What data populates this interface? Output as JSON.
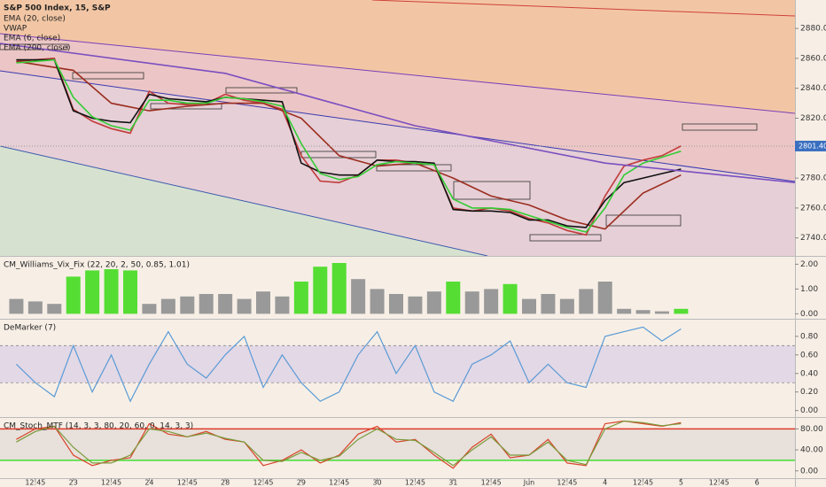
{
  "chart_data": [
    {
      "type": "line",
      "title": "S&P 500 Index, 15, S&P",
      "xlim": [
        -0.93,
        20.0
      ],
      "ylim": [
        2728,
        2899
      ],
      "yticks": [
        {
          "value": 2740,
          "label": "2740.00"
        },
        {
          "value": 2760,
          "label": "2760.00"
        },
        {
          "value": 2780,
          "label": "2780.00"
        },
        {
          "value": 2800,
          "label": "2800.00"
        },
        {
          "value": 2820,
          "label": "2820.00"
        },
        {
          "value": 2840,
          "label": "2840.00"
        },
        {
          "value": 2860,
          "label": "2860.00"
        },
        {
          "value": 2880,
          "label": "2880.00"
        }
      ],
      "last_price": {
        "value": 2801.4,
        "label": "2801.40"
      },
      "series": [
        {
          "name": "S&P 500 Index, 15, S&P",
          "color": "#c23b3b",
          "x": [
            -0.5,
            0,
            0.5,
            1,
            1.5,
            2,
            2.5,
            3,
            3.5,
            4,
            4.5,
            5,
            5.5,
            6,
            6.5,
            7,
            7.5,
            8,
            8.5,
            9,
            9.5,
            10,
            10.5,
            11,
            11.5,
            12,
            12.5,
            13,
            13.5,
            14,
            14.5,
            15,
            15.5,
            16,
            16.5,
            17
          ],
          "values": [
            2858,
            2859,
            2860,
            2826,
            2818,
            2813,
            2810,
            2838,
            2830,
            2829,
            2830,
            2836,
            2832,
            2830,
            2826,
            2795,
            2778,
            2777,
            2782,
            2792,
            2792,
            2790,
            2789,
            2760,
            2758,
            2760,
            2758,
            2753,
            2750,
            2745,
            2742,
            2768,
            2788,
            2792,
            2795,
            2801.4
          ]
        },
        {
          "name": "EMA (20, close)",
          "color": "#9b2d1f",
          "x": [
            -0.5,
            1,
            2,
            3,
            4,
            5,
            6,
            7,
            8,
            9,
            10,
            11,
            12,
            13,
            14,
            15,
            16,
            17
          ],
          "values": [
            2858,
            2852,
            2830,
            2825,
            2828,
            2830,
            2830,
            2820,
            2795,
            2788,
            2790,
            2780,
            2768,
            2762,
            2752,
            2746,
            2770,
            2782
          ]
        },
        {
          "name": "VWAP",
          "color": "#111111",
          "x": [
            -0.5,
            0,
            0.5,
            1,
            1.5,
            2,
            2.5,
            3,
            3.5,
            4,
            4.5,
            5,
            5.5,
            6,
            6.5,
            7,
            7.5,
            8,
            8.5,
            9,
            9.5,
            10,
            10.5,
            11,
            11.5,
            12,
            12.5,
            13,
            13.5,
            14,
            14.5,
            15,
            15.5,
            16,
            16.5,
            17
          ],
          "values": [
            2859,
            2859,
            2859,
            2825,
            2820,
            2818,
            2817,
            2836,
            2833,
            2832,
            2831,
            2834,
            2833,
            2832,
            2831,
            2790,
            2784,
            2782,
            2782,
            2792,
            2791,
            2791,
            2790,
            2759,
            2758,
            2758,
            2757,
            2752,
            2752,
            2748,
            2747,
            2765,
            2777,
            2780,
            2783,
            2786
          ]
        },
        {
          "name": "EMA (6, close)",
          "color": "#33cc33",
          "x": [
            -0.5,
            0,
            0.5,
            1,
            1.5,
            2,
            2.5,
            3,
            3.5,
            4,
            4.5,
            5,
            5.5,
            6,
            6.5,
            7,
            7.5,
            8,
            8.5,
            9,
            9.5,
            10,
            10.5,
            11,
            11.5,
            12,
            12.5,
            13,
            13.5,
            14,
            14.5,
            15,
            15.5,
            16,
            16.5,
            17
          ],
          "values": [
            2857,
            2858,
            2859,
            2834,
            2821,
            2815,
            2812,
            2832,
            2832,
            2830,
            2830,
            2834,
            2833,
            2831,
            2828,
            2803,
            2783,
            2779,
            2781,
            2789,
            2791,
            2790,
            2789,
            2766,
            2760,
            2760,
            2759,
            2755,
            2751,
            2747,
            2744,
            2760,
            2782,
            2790,
            2794,
            2798
          ]
        },
        {
          "name": "EMA (200, close)",
          "color": "#7b4fc0",
          "x": [
            -0.93,
            5,
            10,
            15,
            20
          ],
          "values": [
            2870,
            2850,
            2815,
            2790,
            2777
          ]
        }
      ]
    },
    {
      "type": "bar",
      "title": "CM_Williams_Vix_Fix (22, 20, 2, 50, 0.85, 1.01)",
      "xlim": [
        -0.93,
        20.0
      ],
      "ylim": [
        -0.2,
        2.3
      ],
      "yticks": [
        {
          "value": 0,
          "label": "0.00"
        },
        {
          "value": 1,
          "label": "1.00"
        },
        {
          "value": 2,
          "label": "2.00"
        }
      ],
      "x": [
        -0.5,
        0,
        0.5,
        1,
        1.5,
        2,
        2.5,
        3,
        3.5,
        4,
        4.5,
        5,
        5.5,
        6,
        6.5,
        7,
        7.5,
        8,
        8.5,
        9,
        9.5,
        10,
        10.5,
        11,
        11.5,
        12,
        12.5,
        13,
        13.5,
        14,
        14.5,
        15,
        15.5,
        16,
        16.5,
        17
      ],
      "values": [
        0.6,
        0.5,
        0.4,
        1.5,
        1.75,
        1.8,
        1.75,
        0.4,
        0.6,
        0.7,
        0.8,
        0.8,
        0.6,
        0.9,
        0.7,
        1.3,
        1.9,
        2.05,
        1.4,
        1.0,
        0.8,
        0.7,
        0.9,
        1.3,
        0.9,
        1.0,
        1.2,
        0.6,
        0.8,
        0.6,
        1.0,
        1.3,
        0.2,
        0.15,
        0.1,
        0.2
      ],
      "colors": [
        "#999999",
        "#999999",
        "#999999",
        "#55dd33",
        "#55dd33",
        "#55dd33",
        "#55dd33",
        "#999999",
        "#999999",
        "#999999",
        "#999999",
        "#999999",
        "#999999",
        "#999999",
        "#999999",
        "#55dd33",
        "#55dd33",
        "#55dd33",
        "#999999",
        "#999999",
        "#999999",
        "#999999",
        "#999999",
        "#55dd33",
        "#999999",
        "#999999",
        "#55dd33",
        "#999999",
        "#999999",
        "#999999",
        "#999999",
        "#999999",
        "#999999",
        "#999999",
        "#999999",
        "#55dd33"
      ]
    },
    {
      "type": "line",
      "title": "DeMarker (7)",
      "xlim": [
        -0.93,
        20.0
      ],
      "ylim": [
        -0.07,
        0.98
      ],
      "yticks": [
        {
          "value": 0,
          "label": "0.00"
        },
        {
          "value": 0.2,
          "label": "0.20"
        },
        {
          "value": 0.4,
          "label": "0.40"
        },
        {
          "value": 0.6,
          "label": "0.60"
        },
        {
          "value": 0.8,
          "label": "0.80"
        }
      ],
      "band": [
        0.3,
        0.7
      ],
      "series": [
        {
          "name": "DeMarker (7)",
          "color": "#5b9bd5",
          "x": [
            -0.5,
            0,
            0.5,
            1,
            1.5,
            2,
            2.5,
            3,
            3.5,
            4,
            4.5,
            5,
            5.5,
            6,
            6.5,
            7,
            7.5,
            8,
            8.5,
            9,
            9.5,
            10,
            10.5,
            11,
            11.5,
            12,
            12.5,
            13,
            13.5,
            14,
            14.5,
            15,
            15.5,
            16,
            16.5,
            17
          ],
          "values": [
            0.5,
            0.3,
            0.15,
            0.7,
            0.2,
            0.6,
            0.1,
            0.5,
            0.85,
            0.5,
            0.35,
            0.6,
            0.8,
            0.25,
            0.6,
            0.3,
            0.1,
            0.2,
            0.6,
            0.85,
            0.4,
            0.7,
            0.2,
            0.1,
            0.5,
            0.6,
            0.75,
            0.3,
            0.5,
            0.3,
            0.25,
            0.8,
            0.85,
            0.9,
            0.75,
            0.88
          ]
        }
      ]
    },
    {
      "type": "line",
      "title": "CM_Stoch_MTF (14, 3, 3, 80, 20, 60, 0, 14, 3, 3)",
      "xlim": [
        -0.93,
        20.0
      ],
      "ylim": [
        -13.9,
        100.9
      ],
      "yticks": [
        {
          "value": 0,
          "label": "0.00"
        },
        {
          "value": 40,
          "label": "40.00"
        },
        {
          "value": 80,
          "label": "80.00"
        }
      ],
      "band": [
        20,
        80
      ],
      "xticks": [
        {
          "value": 0,
          "label": "12:45"
        },
        {
          "value": 1,
          "label": "23"
        },
        {
          "value": 2,
          "label": "12:45"
        },
        {
          "value": 3,
          "label": "24"
        },
        {
          "value": 4,
          "label": "12:45"
        },
        {
          "value": 5,
          "label": "28"
        },
        {
          "value": 6,
          "label": "12:45"
        },
        {
          "value": 7,
          "label": "29"
        },
        {
          "value": 8,
          "label": "12:45"
        },
        {
          "value": 9,
          "label": "30"
        },
        {
          "value": 10,
          "label": "12:45"
        },
        {
          "value": 11,
          "label": "31"
        },
        {
          "value": 12,
          "label": "12:45"
        },
        {
          "value": 13,
          "label": "Jun"
        },
        {
          "value": 14,
          "label": "12:45"
        },
        {
          "value": 15,
          "label": "4"
        },
        {
          "value": 16,
          "label": "12:45"
        },
        {
          "value": 17,
          "label": "5"
        },
        {
          "value": 18,
          "label": "12:45"
        },
        {
          "value": 19,
          "label": "6"
        }
      ],
      "series": [
        {
          "name": "K",
          "color": "#d9442b",
          "x": [
            -0.5,
            0,
            0.5,
            1,
            1.5,
            2,
            2.5,
            3,
            3.5,
            4,
            4.5,
            5,
            5.5,
            6,
            6.5,
            7,
            7.5,
            8,
            8.5,
            9,
            9.5,
            10,
            10.5,
            11,
            11.5,
            12,
            12.5,
            13,
            13.5,
            14,
            14.5,
            15,
            15.5,
            16,
            16.5,
            17
          ],
          "values": [
            60,
            80,
            85,
            30,
            10,
            20,
            25,
            90,
            70,
            65,
            75,
            60,
            55,
            10,
            20,
            40,
            15,
            30,
            70,
            85,
            55,
            60,
            30,
            5,
            45,
            70,
            25,
            30,
            60,
            15,
            10,
            90,
            95,
            90,
            85,
            92
          ]
        },
        {
          "name": "D",
          "color": "#7a9a3a",
          "x": [
            -0.5,
            0,
            0.5,
            1,
            1.5,
            2,
            2.5,
            3,
            3.5,
            4,
            4.5,
            5,
            5.5,
            6,
            6.5,
            7,
            7.5,
            8,
            8.5,
            9,
            9.5,
            10,
            10.5,
            11,
            11.5,
            12,
            12.5,
            13,
            13.5,
            14,
            14.5,
            15,
            15.5,
            16,
            16.5,
            17
          ],
          "values": [
            55,
            75,
            85,
            45,
            15,
            15,
            30,
            80,
            75,
            65,
            72,
            62,
            55,
            20,
            18,
            35,
            20,
            28,
            60,
            80,
            60,
            58,
            35,
            10,
            40,
            65,
            30,
            30,
            55,
            20,
            12,
            80,
            95,
            92,
            86,
            90
          ]
        }
      ]
    }
  ]
}
